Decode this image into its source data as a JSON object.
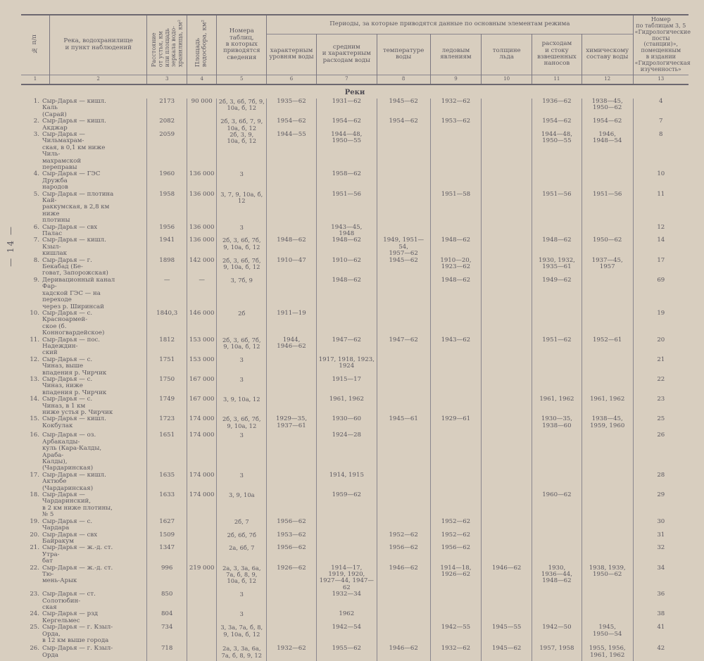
{
  "page_number": "— 14 —",
  "header": {
    "col1": "№ п/п",
    "col2": "Река, водохранилище\nи пункт наблюдений",
    "col3": "Расстояние\nот устья, км\nили площадь\nзеркала водо-\nхранилища, км²",
    "col4": "Площадь\nводосбора, км²",
    "col5": "Номера\nтаблиц,\nв которых\nприводятся\nсведения",
    "periods": "Периоды, за которые приводятся данные по основным элементам режима",
    "col6": "характерным\nуровням воды",
    "col7": "средним\nи характерным\nрасходам воды",
    "col8": "температуре\nводы",
    "col9": "ледовым\nявлениям",
    "col10": "толщине\nльда",
    "col11": "расходам\nи стоку\nвзвешенных\nнаносов",
    "col12": "химическому\nсоставу воды",
    "col13": "Номер\nпо таблицам 3, 5\n«Гидрологические\nпосты (станции)»,\nпомещенным\nв издании\n«Гидрологическая\nизученность»",
    "numbers": [
      "1",
      "2",
      "3",
      "4",
      "5",
      "6",
      "7",
      "8",
      "9",
      "10",
      "11",
      "12",
      "13"
    ]
  },
  "section_title": "Реки",
  "rows": [
    {
      "n": "1.",
      "name": "Сыр-Дарья — кишл. Каль\n(Сарай)",
      "dist": "2173",
      "area": "90 000",
      "tables": "2б, 3, 6б, 7б, 9,\n10а, б, 12",
      "c6": "1935—62",
      "c7": "1931—62",
      "c8": "1945—62",
      "c9": "1932—62",
      "c10": "",
      "c11": "1936—62",
      "c12": "1938—45,\n1950—62",
      "c13": "4"
    },
    {
      "n": "2.",
      "name": "Сыр-Дарья — кишл. Акджар",
      "dist": "2082",
      "area": "",
      "tables": "2б, 3, 6б, 7, 9,\n10а, б, 12",
      "c6": "1954—62",
      "c7": "1954—62",
      "c8": "1954—62",
      "c9": "1953—62",
      "c10": "",
      "c11": "1954—62",
      "c12": "1954—62",
      "c13": "7"
    },
    {
      "n": "3.",
      "name": "Сыр-Дарья — Чильмахрам-\nская, в 0,1 км ниже Чиль-\nмахрамской переправы",
      "dist": "2059",
      "area": "",
      "tables": "2б, 3, 9,\n10а, б, 12",
      "c6": "1944—55",
      "c7": "1944—48,\n1950—55",
      "c8": "",
      "c9": "",
      "c10": "",
      "c11": "1944—48,\n1950—55",
      "c12": "1946,\n1948—54",
      "c13": "8"
    },
    {
      "n": "4.",
      "name": "Сыр-Дарья — ГЭС Дружба\nнародов",
      "dist": "1960",
      "area": "136 000",
      "tables": "3",
      "c6": "",
      "c7": "1958—62",
      "c8": "",
      "c9": "",
      "c10": "",
      "c11": "",
      "c12": "",
      "c13": "10"
    },
    {
      "n": "5.",
      "name": "Сыр-Дарья — плотина Кай-\nраккумская, в 2,8 км ниже\nплотины",
      "dist": "1958",
      "area": "136 000",
      "tables": "3, 7, 9, 10а, б,\n12",
      "c6": "",
      "c7": "1951—56",
      "c8": "",
      "c9": "1951—58",
      "c10": "",
      "c11": "1951—56",
      "c12": "1951—56",
      "c13": "11"
    },
    {
      "n": "6.",
      "name": "Сыр-Дарья — свх Палас",
      "dist": "1956",
      "area": "136 000",
      "tables": "3",
      "c6": "",
      "c7": "1943—45,\n1948",
      "c8": "",
      "c9": "",
      "c10": "",
      "c11": "",
      "c12": "",
      "c13": "12"
    },
    {
      "n": "7.",
      "name": "Сыр-Дарья — кишл. Кзыл-\nкишлак",
      "dist": "1941",
      "area": "136 000",
      "tables": "2б, 3, 6б, 7б,\n9, 10а, б, 12",
      "c6": "1948—62",
      "c7": "1948—62",
      "c8": "1949, 1951—54,\n1957—62",
      "c9": "1948—62",
      "c10": "",
      "c11": "1948—62",
      "c12": "1950—62",
      "c13": "14"
    },
    {
      "n": "8.",
      "name": "Сыр-Дарья — г. Бекабад (Бе-\nговат, Запорожская)",
      "dist": "1898",
      "area": "142 000",
      "tables": "2б, 3, 6б, 7б,\n9, 10а, б, 12",
      "c6": "1910—47",
      "c7": "1910—62",
      "c8": "1945—62",
      "c9": "1910—20,\n1923—62",
      "c10": "",
      "c11": "1930, 1932,\n1935—61",
      "c12": "1937—45,\n1957",
      "c13": "17"
    },
    {
      "n": "9.",
      "name": "Деривационный канал Фар-\nхадской ГЭС — на переходе\nчерез р. Ширинсай",
      "dist": "—",
      "area": "—",
      "tables": "3, 7б, 9",
      "c6": "",
      "c7": "1948—62",
      "c8": "",
      "c9": "1948—62",
      "c10": "",
      "c11": "1949—62",
      "c12": "",
      "c13": "69"
    },
    {
      "n": "10.",
      "name": "Сыр-Дарья — с. Красноармей-\nское (б. Конногвардейское)",
      "dist": "1840,3",
      "area": "146 000",
      "tables": "2б",
      "c6": "1911—19",
      "c7": "",
      "c8": "",
      "c9": "",
      "c10": "",
      "c11": "",
      "c12": "",
      "c13": "19"
    },
    {
      "n": "11.",
      "name": "Сыр-Дарья — пос. Надеждин-\nский",
      "dist": "1812",
      "area": "153 000",
      "tables": "2б, 3, 6б, 7б,\n9, 10а, б, 12",
      "c6": "1944,\n1946—62",
      "c7": "1947—62",
      "c8": "1947—62",
      "c9": "1943—62",
      "c10": "",
      "c11": "1951—62",
      "c12": "1952—61",
      "c13": "20"
    },
    {
      "n": "12.",
      "name": "Сыр-Дарья — с. Чиназ, выше\nвпадения р. Чирчик",
      "dist": "1751",
      "area": "153 000",
      "tables": "3",
      "c6": "",
      "c7": "1917, 1918, 1923, 1924",
      "c8": "",
      "c9": "",
      "c10": "",
      "c11": "",
      "c12": "",
      "c13": "21"
    },
    {
      "n": "13.",
      "name": "Сыр-Дарья — с. Чиназ, ниже\nвпадения р. Чирчик",
      "dist": "1750",
      "area": "167 000",
      "tables": "3",
      "c6": "",
      "c7": "1915—17",
      "c8": "",
      "c9": "",
      "c10": "",
      "c11": "",
      "c12": "",
      "c13": "22"
    },
    {
      "n": "14.",
      "name": "Сыр-Дарья — с. Чиназ, в 1 км\nниже устья р. Чирчик",
      "dist": "1749",
      "area": "167 000",
      "tables": "3, 9, 10а, 12",
      "c6": "",
      "c7": "1961, 1962",
      "c8": "",
      "c9": "",
      "c10": "",
      "c11": "1961, 1962",
      "c12": "1961, 1962",
      "c13": "23"
    },
    {
      "n": "15.",
      "name": "Сыр-Дарья — кишл. Кокбулак",
      "dist": "1723",
      "area": "174 000",
      "tables": "2б, 3, 6б, 7б,\n9, 10а, 12",
      "c6": "1929—35,\n1937—61",
      "c7": "1930—60",
      "c8": "1945—61",
      "c9": "1929—61",
      "c10": "",
      "c11": "1930—35,\n1938—60",
      "c12": "1938—45,\n1959, 1960",
      "c13": "25"
    },
    {
      "n": "16.",
      "name": "Сыр-Дарья — оз. Арбакалды-\nкуль (Кара-Калды, Араба-\nКалды), (Чардаринская)",
      "dist": "1651",
      "area": "174 000",
      "tables": "3",
      "c6": "",
      "c7": "1924—28",
      "c8": "",
      "c9": "",
      "c10": "",
      "c11": "",
      "c12": "",
      "c13": "26"
    },
    {
      "n": "17.",
      "name": "Сыр-Дарья — кишл. Актюбе\n(Чардаринская)",
      "dist": "1635",
      "area": "174 000",
      "tables": "3",
      "c6": "",
      "c7": "1914, 1915",
      "c8": "",
      "c9": "",
      "c10": "",
      "c11": "",
      "c12": "",
      "c13": "28"
    },
    {
      "n": "18.",
      "name": "Сыр-Дарья — Чардаринский,\nв 2 км ниже плотины, № 5",
      "dist": "1633",
      "area": "174 000",
      "tables": "3, 9, 10а",
      "c6": "",
      "c7": "1959—62",
      "c8": "",
      "c9": "",
      "c10": "",
      "c11": "1960—62",
      "c12": "",
      "c13": "29"
    },
    {
      "n": "19.",
      "name": "Сыр-Дарья — с. Чардара",
      "dist": "1627",
      "area": "",
      "tables": "2б, 7",
      "c6": "1956—62",
      "c7": "",
      "c8": "",
      "c9": "1952—62",
      "c10": "",
      "c11": "",
      "c12": "",
      "c13": "30"
    },
    {
      "n": "20.",
      "name": "Сыр-Дарья — свх Байракум",
      "dist": "1509",
      "area": "",
      "tables": "2б, 6б, 7б",
      "c6": "1953—62",
      "c7": "",
      "c8": "1952—62",
      "c9": "1952—62",
      "c10": "",
      "c11": "",
      "c12": "",
      "c13": "31"
    },
    {
      "n": "21.",
      "name": "Сыр-Дарья — ж.-д. ст. Утра-\nбат",
      "dist": "1347",
      "area": "",
      "tables": "2а, 6б, 7",
      "c6": "1956—62",
      "c7": "",
      "c8": "1956—62",
      "c9": "1956—62",
      "c10": "",
      "c11": "",
      "c12": "",
      "c13": "32"
    },
    {
      "n": "22.",
      "name": "Сыр-Дарья — ж.-д. ст. Тю-\nмень-Арык",
      "dist": "996",
      "area": "219 000",
      "tables": "2а, 3, 3а, 6а,\n7а, б, 8, 9,\n10а, б, 12",
      "c6": "1926—62",
      "c7": "1914—17,\n1919, 1920,\n1927—44, 1947—62",
      "c8": "1946—62",
      "c9": "1914—18,\n1926—62",
      "c10": "1946—62",
      "c11": "1930,\n1936—44,\n1948—62",
      "c12": "1938, 1939,\n1950—62",
      "c13": "34"
    },
    {
      "n": "23.",
      "name": "Сыр-Дарья — ст. Солотюбин-\nская",
      "dist": "850",
      "area": "",
      "tables": "3",
      "c6": "",
      "c7": "1932—34",
      "c8": "",
      "c9": "",
      "c10": "",
      "c11": "",
      "c12": "",
      "c13": "36"
    },
    {
      "n": "24.",
      "name": "Сыр-Дарья — рзд Кергельмес",
      "dist": "804",
      "area": "",
      "tables": "3",
      "c6": "",
      "c7": "1962",
      "c8": "",
      "c9": "",
      "c10": "",
      "c11": "",
      "c12": "",
      "c13": "38"
    },
    {
      "n": "25.",
      "name": "Сыр-Дарья — г. Кзыл-Орда,\nв 12 км выше города",
      "dist": "734",
      "area": "",
      "tables": "3, 3а, 7а, б, 8,\n9, 10а, б, 12",
      "c6": "",
      "c7": "1942—54",
      "c8": "",
      "c9": "1942—55",
      "c10": "1945—55",
      "c11": "1942—50",
      "c12": "1945,\n1950—54",
      "c13": "41"
    },
    {
      "n": "26.",
      "name": "Сыр-Дарья — г. Кзыл-Орда",
      "dist": "718",
      "area": "",
      "tables": "2а, 3, 3а, 6а,\n7а, б, 8, 9, 12",
      "c6": "1932—62",
      "c7": "1955—62",
      "c8": "1946—62",
      "c9": "1932—62",
      "c10": "1945—62",
      "c11": "1957, 1958",
      "c12": "1955, 1956,\n1961, 1962",
      "c13": "42"
    }
  ]
}
